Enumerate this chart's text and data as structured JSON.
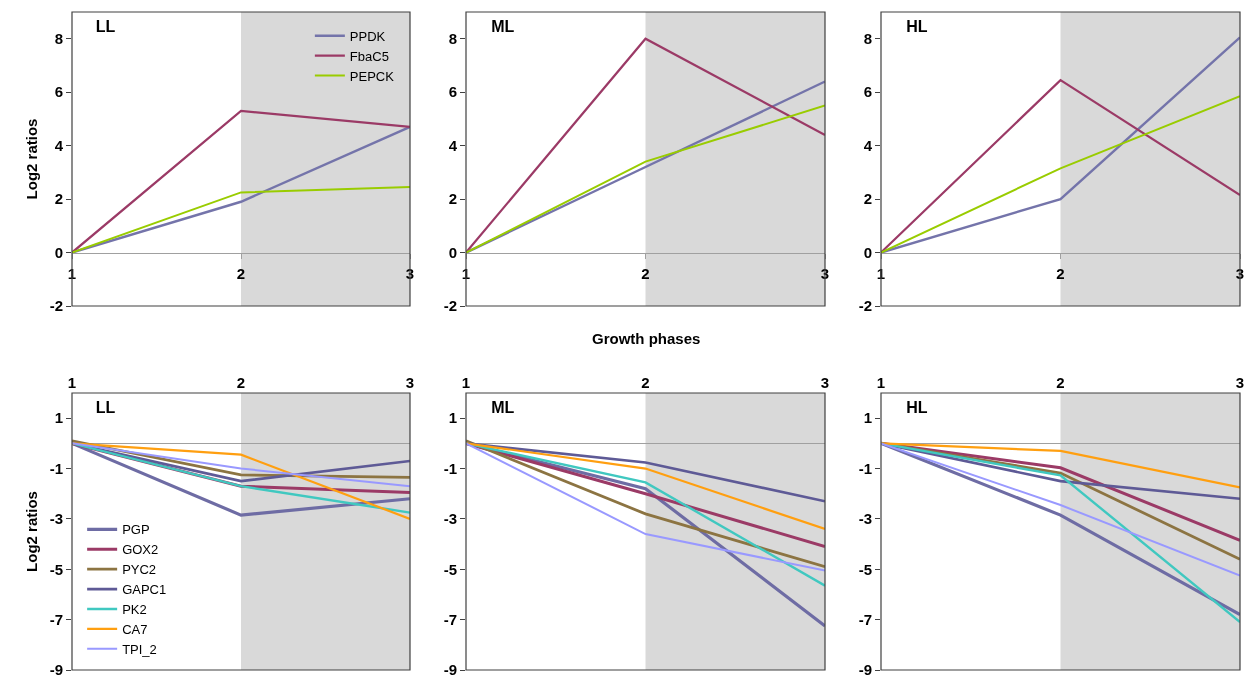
{
  "chart_data": [
    {
      "type": "line",
      "title": "LL",
      "ylabel": "Log2 ratios",
      "x": [
        1,
        2,
        3
      ],
      "xlim": [
        1,
        3
      ],
      "xticks": [
        1,
        2,
        3
      ],
      "ylim": [
        -2,
        9
      ],
      "yticks": [
        -2,
        0,
        2,
        4,
        6,
        8
      ],
      "grid": false,
      "legend": "top right",
      "bands": [
        {
          "axis": "x",
          "from": 2,
          "to": 3,
          "color": "#d9d9d9"
        }
      ],
      "series": [
        {
          "name": "PPDK",
          "color": "#7474aa",
          "values": [
            0,
            1.9,
            4.7
          ]
        },
        {
          "name": "FbaC5",
          "color": "#9b3a66",
          "values": [
            0,
            5.3,
            4.7
          ]
        },
        {
          "name": "PEPCK",
          "color": "#99cc00",
          "values": [
            0,
            2.25,
            2.45
          ]
        }
      ]
    },
    {
      "type": "line",
      "title": "ML",
      "x": [
        1,
        2,
        3
      ],
      "xlim": [
        1,
        3
      ],
      "xticks": [
        1,
        2,
        3
      ],
      "ylim": [
        -2,
        9
      ],
      "yticks": [
        -2,
        0,
        2,
        4,
        6,
        8
      ],
      "grid": false,
      "legend": false,
      "bands": [
        {
          "axis": "x",
          "from": 2,
          "to": 3,
          "color": "#d9d9d9"
        }
      ],
      "series": [
        {
          "color": "#7474aa",
          "values": [
            0,
            3.2,
            6.4
          ]
        },
        {
          "color": "#9b3a66",
          "values": [
            0,
            8,
            4.4
          ]
        },
        {
          "color": "#99cc00",
          "values": [
            0,
            3.4,
            5.5
          ]
        }
      ]
    },
    {
      "type": "line",
      "title": "HL",
      "x": [
        1,
        2,
        3
      ],
      "xlim": [
        1,
        3
      ],
      "xticks": [
        1,
        2,
        3
      ],
      "ylim": [
        -2,
        9
      ],
      "yticks": [
        -2,
        0,
        2,
        4,
        6,
        8
      ],
      "grid": false,
      "legend": false,
      "bands": [
        {
          "axis": "x",
          "from": 2,
          "to": 3,
          "color": "#d9d9d9"
        }
      ],
      "series": [
        {
          "color": "#7474aa",
          "values": [
            0,
            2,
            8.05
          ]
        },
        {
          "color": "#9b3a66",
          "values": [
            0,
            6.45,
            2.15
          ]
        },
        {
          "color": "#99cc00",
          "values": [
            0,
            3.15,
            5.85
          ]
        }
      ]
    },
    {
      "type": "line",
      "title": "LL",
      "ylabel": "Log2 ratios",
      "x": [
        1,
        2,
        3
      ],
      "xlim": [
        1,
        3
      ],
      "xticks": [
        1,
        2,
        3
      ],
      "ylim": [
        -9,
        2
      ],
      "yticks": [
        -9,
        -7,
        -5,
        -3,
        -1,
        1
      ],
      "grid": false,
      "legend": "bottom left",
      "bands": [
        {
          "axis": "x",
          "from": 2,
          "to": 3,
          "color": "#d9d9d9"
        }
      ],
      "series": [
        {
          "name": "PGP",
          "color": "#6e6ca4",
          "values": [
            0,
            -2.85,
            -2.2
          ]
        },
        {
          "name": "GOX2",
          "color": "#9b3a66",
          "values": [
            0,
            -1.7,
            -1.95
          ]
        },
        {
          "name": "PYC2",
          "color": "#8c7442",
          "values": [
            0.1,
            -1.25,
            -1.35
          ]
        },
        {
          "name": "GAPC1",
          "color": "#5e5a96",
          "values": [
            0,
            -1.5,
            -0.7
          ]
        },
        {
          "name": "PK2",
          "color": "#40c8c0",
          "values": [
            0,
            -1.7,
            -2.75
          ]
        },
        {
          "name": "CA7",
          "color": "#ff9f10",
          "values": [
            0,
            -0.45,
            -3
          ]
        },
        {
          "name": "TPI_2",
          "color": "#9999ff",
          "values": [
            0,
            -1,
            -1.7
          ]
        }
      ]
    },
    {
      "type": "line",
      "title": "ML",
      "xlabel": "Growth phases",
      "x": [
        1,
        2,
        3
      ],
      "xlim": [
        1,
        3
      ],
      "xticks": [
        1,
        2,
        3
      ],
      "ylim": [
        -9,
        2
      ],
      "yticks": [
        -9,
        -7,
        -5,
        -3,
        -1,
        1
      ],
      "grid": false,
      "legend": false,
      "bands": [
        {
          "axis": "x",
          "from": 2,
          "to": 3,
          "color": "#d9d9d9"
        }
      ],
      "series": [
        {
          "color": "#6e6ca4",
          "values": [
            0,
            -1.8,
            -7.25
          ]
        },
        {
          "color": "#9b3a66",
          "values": [
            0,
            -2,
            -4.1
          ]
        },
        {
          "color": "#8c7442",
          "values": [
            0.1,
            -2.8,
            -4.9
          ]
        },
        {
          "color": "#5e5a96",
          "values": [
            0,
            -0.76,
            -2.3
          ]
        },
        {
          "color": "#40c8c0",
          "values": [
            0,
            -1.55,
            -5.65
          ]
        },
        {
          "color": "#ff9f10",
          "values": [
            0,
            -1,
            -3.4
          ]
        },
        {
          "color": "#9999ff",
          "values": [
            0,
            -3.6,
            -5.05
          ]
        }
      ]
    },
    {
      "type": "line",
      "title": "HL",
      "x": [
        1,
        2,
        3
      ],
      "xlim": [
        1,
        3
      ],
      "xticks": [
        1,
        2,
        3
      ],
      "ylim": [
        -9,
        2
      ],
      "yticks": [
        -9,
        -7,
        -5,
        -3,
        -1,
        1
      ],
      "grid": false,
      "legend": false,
      "bands": [
        {
          "axis": "x",
          "from": 2,
          "to": 3,
          "color": "#d9d9d9"
        }
      ],
      "series": [
        {
          "color": "#6e6ca4",
          "values": [
            0,
            -2.85,
            -6.8
          ]
        },
        {
          "color": "#9b3a66",
          "values": [
            0,
            -0.97,
            -3.85
          ]
        },
        {
          "color": "#8c7442",
          "values": [
            0,
            -1.18,
            -4.6
          ]
        },
        {
          "color": "#5e5a96",
          "values": [
            0,
            -1.5,
            -2.2
          ]
        },
        {
          "color": "#40c8c0",
          "values": [
            0,
            -1.27,
            -7.1
          ]
        },
        {
          "color": "#ff9f10",
          "values": [
            0,
            -0.3,
            -1.75
          ]
        },
        {
          "color": "#9999ff",
          "values": [
            0,
            -2.45,
            -5.25
          ]
        }
      ]
    }
  ]
}
